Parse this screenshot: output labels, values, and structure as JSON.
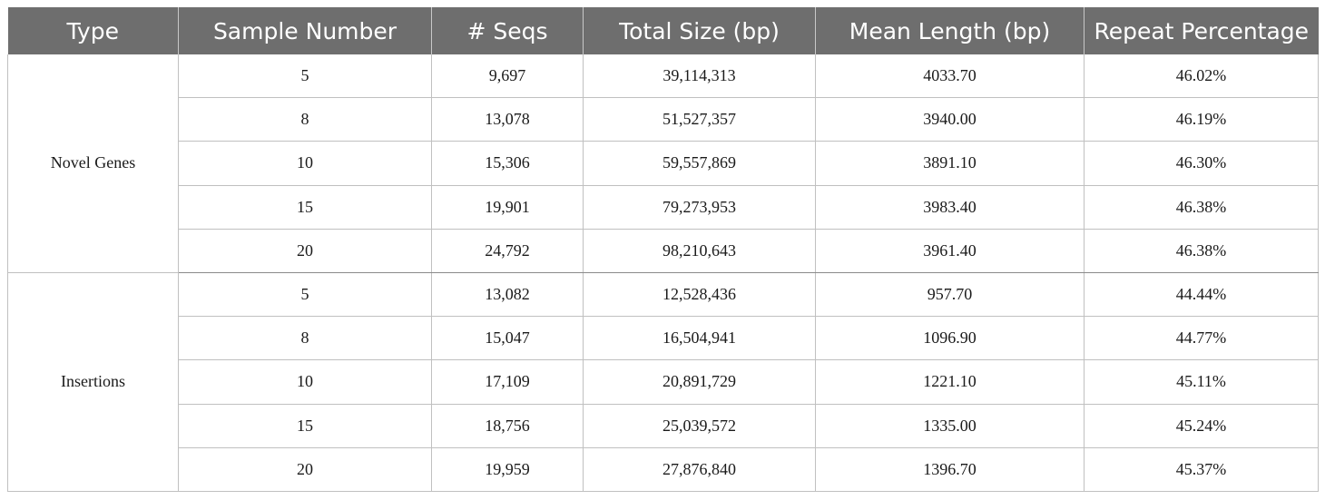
{
  "table": {
    "headers": [
      "Type",
      "Sample Number",
      "# Seqs",
      "Total Size (bp)",
      "Mean Length (bp)",
      "Repeat Percentage"
    ],
    "groups": [
      {
        "type": "Novel Genes",
        "rows": [
          [
            "5",
            "9,697",
            "39,114,313",
            "4033.70",
            "46.02%"
          ],
          [
            "8",
            "13,078",
            "51,527,357",
            "3940.00",
            "46.19%"
          ],
          [
            "10",
            "15,306",
            "59,557,869",
            "3891.10",
            "46.30%"
          ],
          [
            "15",
            "19,901",
            "79,273,953",
            "3983.40",
            "46.38%"
          ],
          [
            "20",
            "24,792",
            "98,210,643",
            "3961.40",
            "46.38%"
          ]
        ]
      },
      {
        "type": "Insertions",
        "rows": [
          [
            "5",
            "13,082",
            "12,528,436",
            "957.70",
            "44.44%"
          ],
          [
            "8",
            "15,047",
            "16,504,941",
            "1096.90",
            "44.77%"
          ],
          [
            "10",
            "17,109",
            "20,891,729",
            "1221.10",
            "45.11%"
          ],
          [
            "15",
            "18,756",
            "25,039,572",
            "1335.00",
            "45.24%"
          ],
          [
            "20",
            "19,959",
            "27,876,840",
            "1396.70",
            "45.37%"
          ]
        ]
      }
    ]
  },
  "colors": {
    "header_bg": "#6e6e6e",
    "header_text": "#ffffff",
    "grid": "#c0c0c0"
  }
}
